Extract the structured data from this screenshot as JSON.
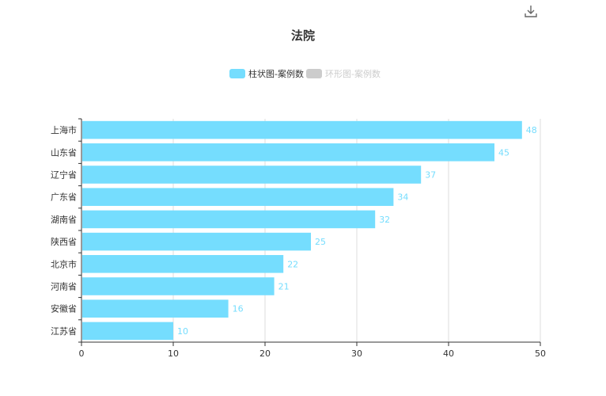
{
  "chart_data": {
    "type": "bar",
    "orientation": "horizontal",
    "title": "法院",
    "categories": [
      "上海市",
      "山东省",
      "辽宁省",
      "广东省",
      "湖南省",
      "陕西省",
      "北京市",
      "河南省",
      "安徽省",
      "江苏省"
    ],
    "series": [
      {
        "name": "柱状图-案例数",
        "values": [
          48,
          45,
          37,
          34,
          32,
          25,
          22,
          21,
          16,
          10
        ],
        "color": "#75ddfe",
        "active": true
      },
      {
        "name": "环形图-案例数",
        "color": "#cccccc",
        "active": false
      }
    ],
    "xlim": [
      0,
      50
    ],
    "xticks": [
      0,
      10,
      20,
      30,
      40,
      50
    ],
    "grid": "vertical",
    "legend_position": "top-center",
    "data_labels": true
  },
  "toolbar": {
    "icon": "download-icon"
  },
  "colors": {
    "bar": "#75ddfe",
    "label": "#75ddfe",
    "axis": "#333333",
    "grid": "#dddddd",
    "legend_inactive": "#cccccc"
  }
}
